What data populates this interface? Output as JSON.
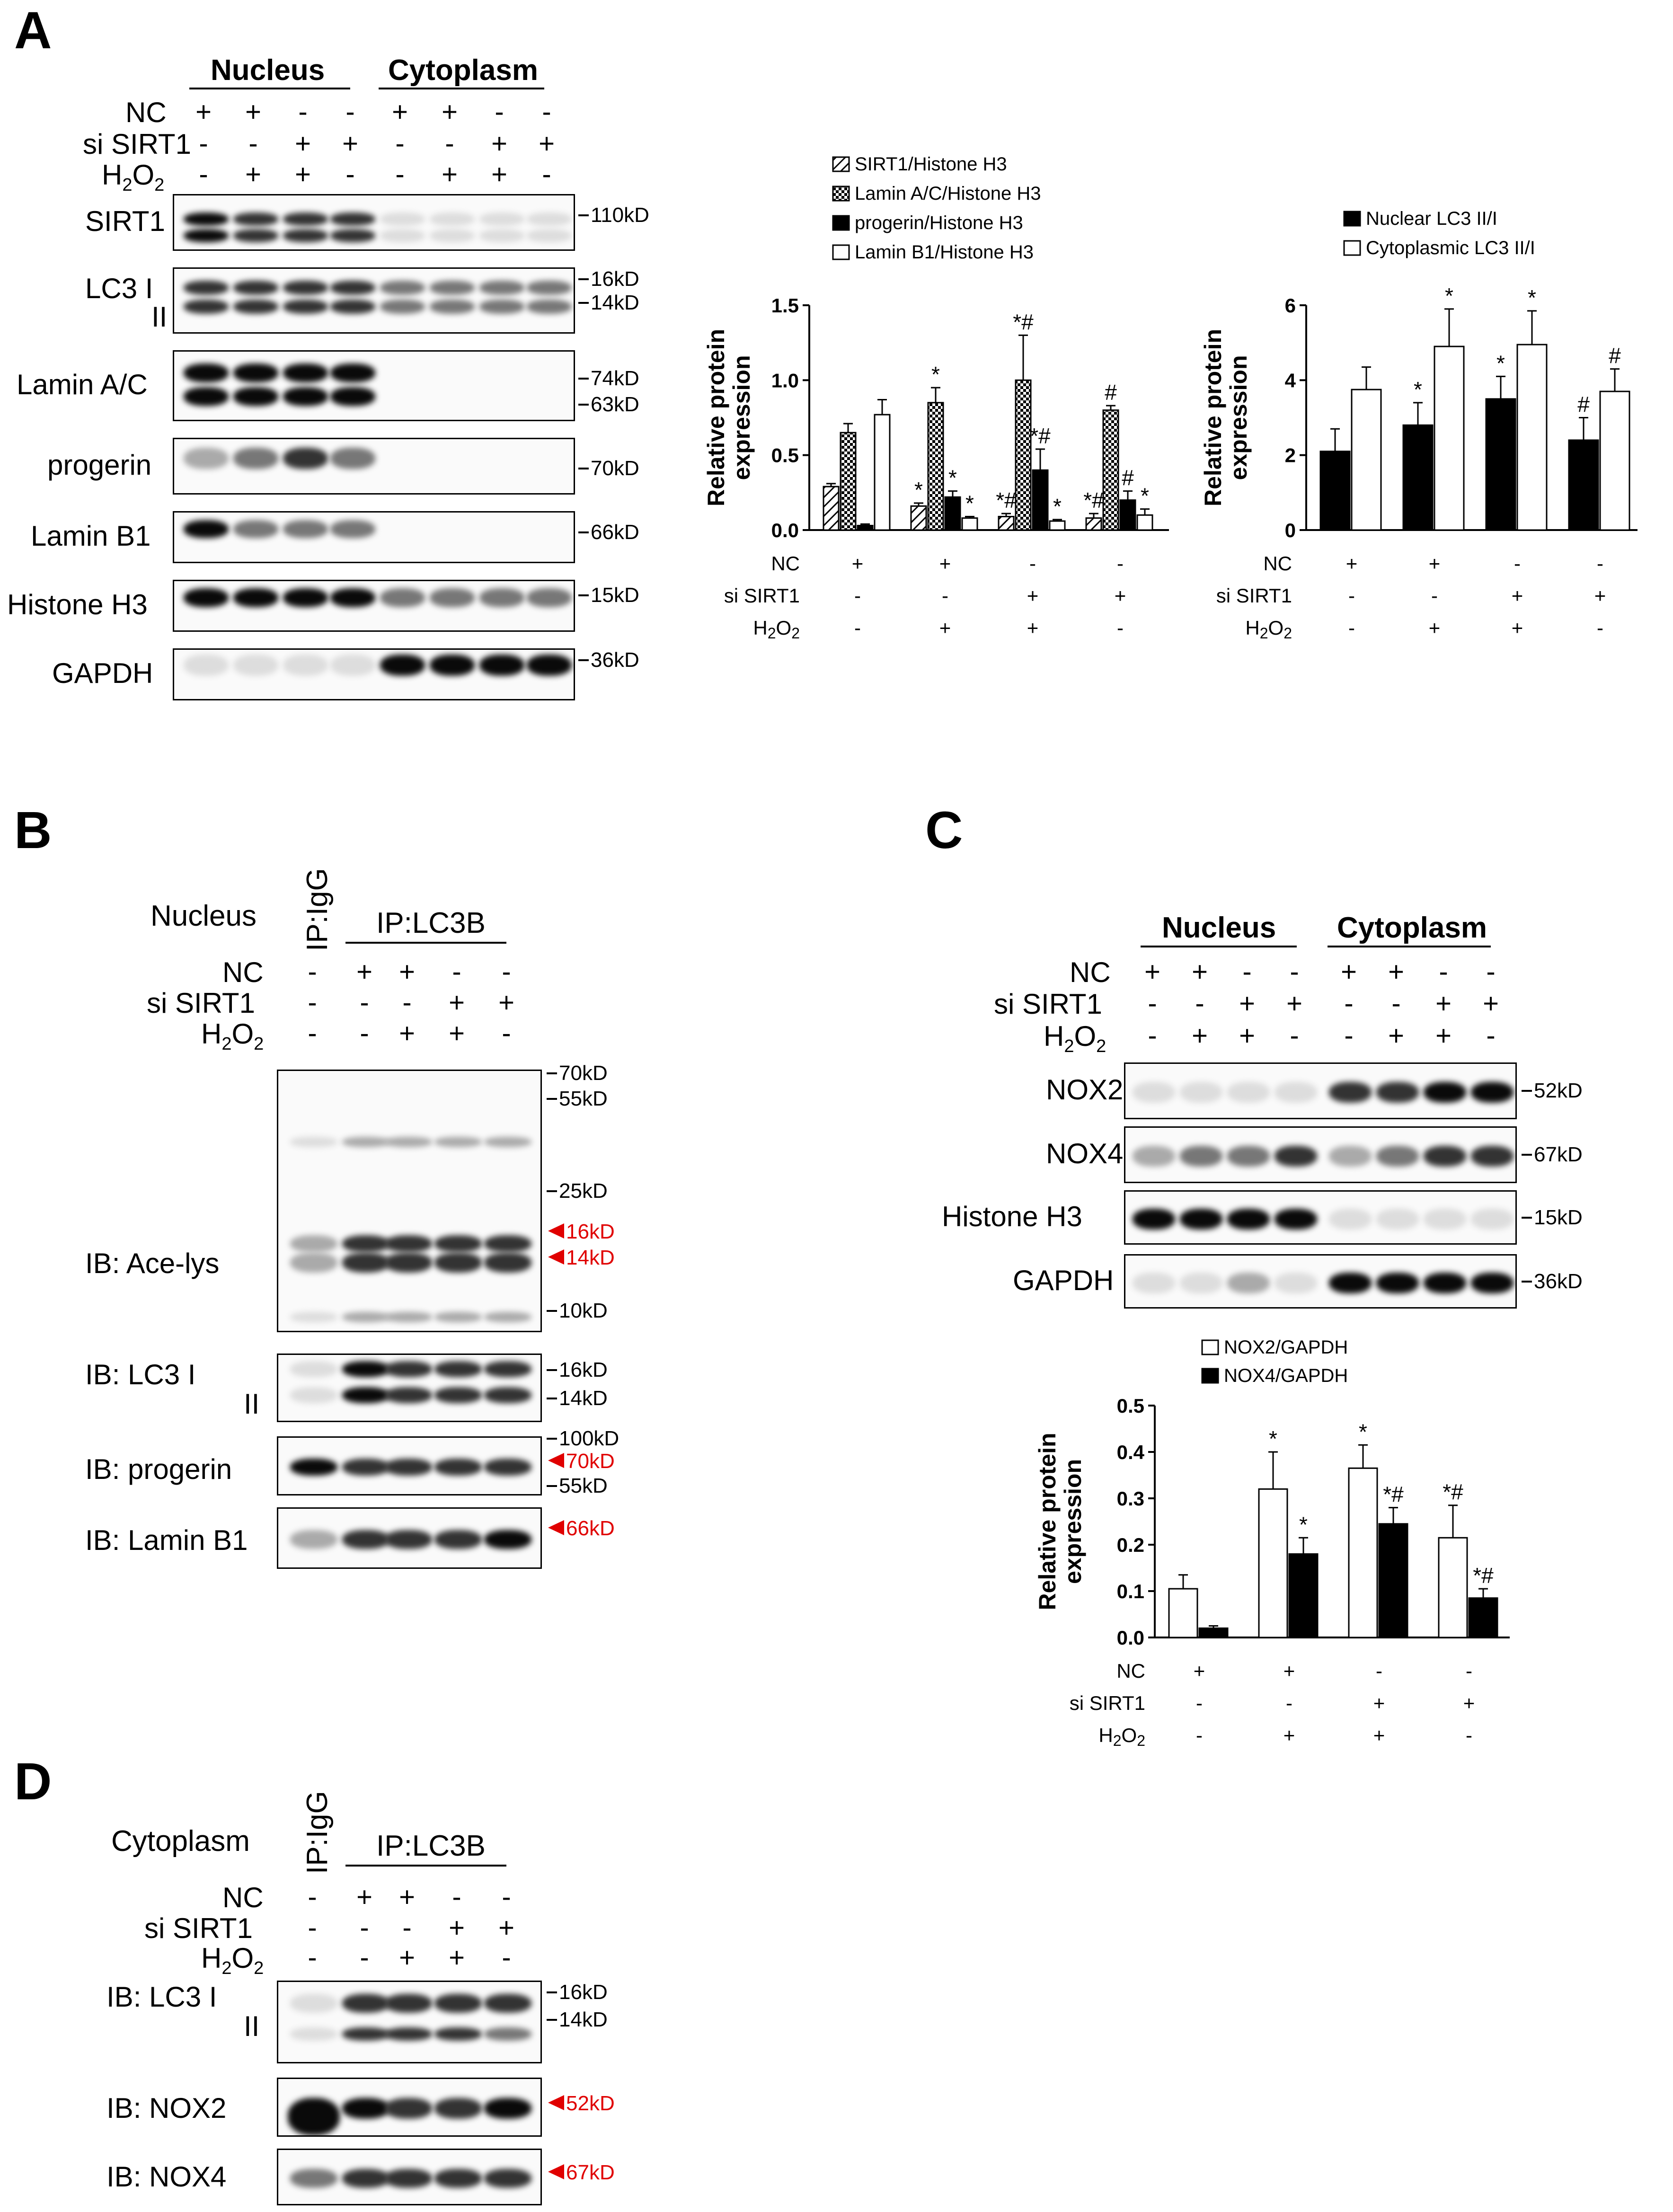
{
  "panel_letters": {
    "a": "A",
    "b": "B",
    "c": "C",
    "d": "D"
  },
  "panel_a": {
    "fraction_nucleus": "Nucleus",
    "fraction_cytoplasm": "Cytoplasm",
    "row_nc": "NC",
    "row_si": "si SIRT1",
    "row_h2o2": "H",
    "nc_signs": [
      "+",
      "+",
      "-",
      "-",
      "+",
      "+",
      "-",
      "-"
    ],
    "si_signs": [
      "-",
      "-",
      "+",
      "+",
      "-",
      "-",
      "+",
      "+"
    ],
    "h2o2_signs": [
      "-",
      "+",
      "+",
      "-",
      "-",
      "+",
      "+",
      "-"
    ],
    "blots": [
      {
        "label": "SIRT1",
        "sizes": [
          "110kD"
        ]
      },
      {
        "label": "LC3 I",
        "label2": "II",
        "sizes": [
          "16kD",
          "14kD"
        ]
      },
      {
        "label": "Lamin A/C",
        "sizes": [
          "74kD",
          "63kD"
        ]
      },
      {
        "label": "progerin",
        "sizes": [
          "70kD"
        ]
      },
      {
        "label": "Lamin B1",
        "sizes": [
          "66kD"
        ]
      },
      {
        "label": "Histone H3",
        "sizes": [
          "15kD"
        ]
      },
      {
        "label": "GAPDH",
        "sizes": [
          "36kD"
        ]
      }
    ]
  },
  "panel_b": {
    "fraction": "Nucleus",
    "ip_igg": "IP:IgG",
    "ip_lc3b": "IP:LC3B",
    "row_nc": "NC",
    "row_si": "si SIRT1",
    "row_h2o2": "H",
    "nc_signs": [
      "-",
      "+",
      "+",
      "-",
      "-"
    ],
    "si_signs": [
      "-",
      "-",
      "-",
      "+",
      "+"
    ],
    "h2o2_signs": [
      "-",
      "-",
      "+",
      "+",
      "-"
    ],
    "blots": [
      {
        "label": "IB: Ace-lys",
        "sizes": [
          "70kD",
          "55kD",
          "25kD",
          "10kD"
        ],
        "red": [
          "16kD",
          "14kD"
        ]
      },
      {
        "label": "IB: LC3 I",
        "label2": "II",
        "sizes": [
          "16kD",
          "14kD"
        ]
      },
      {
        "label": "IB: progerin",
        "sizes": [
          "100kD",
          "55kD"
        ],
        "red": [
          "70kD"
        ]
      },
      {
        "label": "IB: Lamin B1",
        "red": [
          "66kD"
        ]
      }
    ]
  },
  "panel_c": {
    "fraction_nucleus": "Nucleus",
    "fraction_cytoplasm": "Cytoplasm",
    "row_nc": "NC",
    "row_si": "si SIRT1",
    "row_h2o2": "H",
    "nc_signs": [
      "+",
      "+",
      "-",
      "-",
      "+",
      "+",
      "-",
      "-"
    ],
    "si_signs": [
      "-",
      "-",
      "+",
      "+",
      "-",
      "-",
      "+",
      "+"
    ],
    "h2o2_signs": [
      "-",
      "+",
      "+",
      "-",
      "-",
      "+",
      "+",
      "-"
    ],
    "blots": [
      {
        "label": "NOX2",
        "sizes": [
          "52kD"
        ]
      },
      {
        "label": "NOX4",
        "sizes": [
          "67kD"
        ]
      },
      {
        "label": "Histone H3",
        "sizes": [
          "15kD"
        ]
      },
      {
        "label": "GAPDH",
        "sizes": [
          "36kD"
        ]
      }
    ]
  },
  "panel_d": {
    "fraction": "Cytoplasm",
    "ip_igg": "IP:IgG",
    "ip_lc3b": "IP:LC3B",
    "row_nc": "NC",
    "row_si": "si SIRT1",
    "row_h2o2": "H",
    "nc_signs": [
      "-",
      "+",
      "+",
      "-",
      "-"
    ],
    "si_signs": [
      "-",
      "-",
      "-",
      "+",
      "+"
    ],
    "h2o2_signs": [
      "-",
      "-",
      "+",
      "+",
      "-"
    ],
    "blots": [
      {
        "label": "IB: LC3 I",
        "label2": "II",
        "sizes": [
          "16kD",
          "14kD"
        ]
      },
      {
        "label": "IB: NOX2",
        "red": [
          "52kD"
        ]
      },
      {
        "label": "IB: NOX4",
        "red": [
          "67kD"
        ]
      }
    ]
  },
  "chart_data": [
    {
      "id": "chart_a1",
      "type": "bar",
      "ylabel": "Relative protein expression",
      "ylim": [
        0,
        1.5
      ],
      "yticks": [
        "0.0",
        "0.5",
        "1.0",
        "1.5"
      ],
      "categories": [
        "NC+ / si- / H2O2-",
        "NC+ / si- / H2O2+",
        "NC- / si+ / H2O2+",
        "NC- / si+ / H2O2-"
      ],
      "cond_rows": [
        {
          "label": "NC",
          "signs": [
            "+",
            "+",
            "-",
            "-"
          ]
        },
        {
          "label": "si SIRT1",
          "signs": [
            "-",
            "-",
            "+",
            "+"
          ]
        },
        {
          "label": "H",
          "sub": "2",
          "label_end": "O",
          "sub2": "2",
          "signs": [
            "-",
            "+",
            "+",
            "-"
          ]
        }
      ],
      "series": [
        {
          "name": "SIRT1/Histone H3",
          "pattern": "hatch",
          "values": [
            0.29,
            0.16,
            0.09,
            0.08
          ],
          "errors": [
            0.02,
            0.02,
            0.02,
            0.03
          ],
          "annot": [
            "",
            "*",
            "*#",
            "*#"
          ]
        },
        {
          "name": "Lamin A/C/Histone H3",
          "pattern": "check",
          "values": [
            0.65,
            0.85,
            1.0,
            0.8
          ],
          "errors": [
            0.06,
            0.1,
            0.3,
            0.03
          ],
          "annot": [
            "",
            "*",
            "*#",
            "#"
          ]
        },
        {
          "name": "progerin/Histone H3",
          "pattern": "black",
          "values": [
            0.03,
            0.22,
            0.4,
            0.2
          ],
          "errors": [
            0.01,
            0.04,
            0.14,
            0.06
          ],
          "annot": [
            "",
            "*",
            "*#",
            "#"
          ]
        },
        {
          "name": "Lamin B1/Histone H3",
          "pattern": "white",
          "values": [
            0.77,
            0.08,
            0.06,
            0.1
          ],
          "errors": [
            0.1,
            0.01,
            0.01,
            0.04
          ],
          "annot": [
            "",
            "*",
            "*",
            "*"
          ]
        }
      ]
    },
    {
      "id": "chart_a2",
      "type": "bar",
      "ylabel": "Relative protein expression",
      "ylim": [
        0,
        6
      ],
      "yticks": [
        "0",
        "2",
        "4",
        "6"
      ],
      "categories": [
        "NC+ / si- / H2O2-",
        "NC+ / si- / H2O2+",
        "NC- / si+ / H2O2+",
        "NC- / si+ / H2O2-"
      ],
      "cond_rows": [
        {
          "label": "NC",
          "signs": [
            "+",
            "+",
            "-",
            "-"
          ]
        },
        {
          "label": "si SIRT1",
          "signs": [
            "-",
            "-",
            "+",
            "+"
          ]
        },
        {
          "label": "H",
          "sub": "2",
          "label_end": "O",
          "sub2": "2",
          "signs": [
            "-",
            "+",
            "+",
            "-"
          ]
        }
      ],
      "series": [
        {
          "name": "Nuclear LC3 II/I",
          "pattern": "black",
          "values": [
            2.1,
            2.8,
            3.5,
            2.4
          ],
          "errors": [
            0.6,
            0.6,
            0.6,
            0.6
          ],
          "annot": [
            "",
            "*",
            "*",
            "#"
          ]
        },
        {
          "name": "Cytoplasmic LC3 II/I",
          "pattern": "white",
          "values": [
            3.75,
            4.9,
            4.95,
            3.7
          ],
          "errors": [
            0.6,
            1.0,
            0.9,
            0.6
          ],
          "annot": [
            "",
            "*",
            "*",
            "#"
          ]
        }
      ]
    },
    {
      "id": "chart_c",
      "type": "bar",
      "ylabel": "Relative protein expression",
      "ylim": [
        0,
        0.5
      ],
      "yticks": [
        "0.0",
        "0.1",
        "0.2",
        "0.3",
        "0.4",
        "0.5"
      ],
      "categories": [
        "NC+ / si- / H2O2-",
        "NC+ / si- / H2O2+",
        "NC- / si+ / H2O2+",
        "NC- / si+ / H2O2-"
      ],
      "cond_rows": [
        {
          "label": "NC",
          "signs": [
            "+",
            "+",
            "-",
            "-"
          ]
        },
        {
          "label": "si SIRT1",
          "signs": [
            "-",
            "-",
            "+",
            "+"
          ]
        },
        {
          "label": "H",
          "sub": "2",
          "label_end": "O",
          "sub2": "2",
          "signs": [
            "-",
            "+",
            "+",
            "-"
          ]
        }
      ],
      "series": [
        {
          "name": "NOX2/GAPDH",
          "pattern": "white",
          "values": [
            0.105,
            0.32,
            0.365,
            0.215
          ],
          "errors": [
            0.03,
            0.08,
            0.05,
            0.07
          ],
          "annot": [
            "",
            "*",
            "*",
            "*#"
          ]
        },
        {
          "name": "NOX4/GAPDH",
          "pattern": "black",
          "values": [
            0.02,
            0.18,
            0.245,
            0.085
          ],
          "errors": [
            0.005,
            0.035,
            0.035,
            0.02
          ],
          "annot": [
            "",
            "*",
            "*#",
            "*#"
          ]
        }
      ]
    }
  ]
}
